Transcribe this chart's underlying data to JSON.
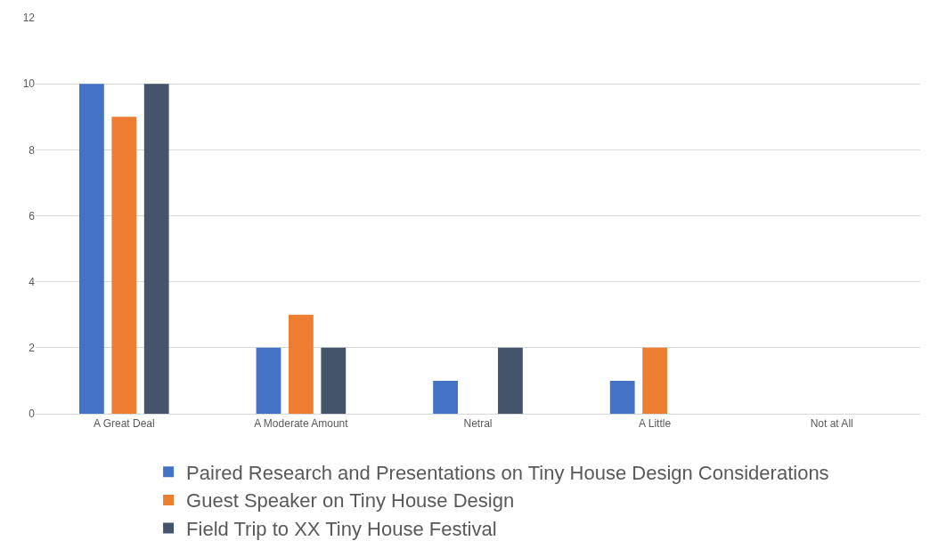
{
  "chart_data": {
    "type": "bar",
    "categories": [
      "A Great Deal",
      "A Moderate Amount",
      "Netral",
      "A Little",
      "Not at All"
    ],
    "series": [
      {
        "name": "Paired Research and Presentations on Tiny House Design Considerations",
        "color": "#4472c4",
        "values": [
          10,
          2,
          1,
          1,
          0
        ]
      },
      {
        "name": "Guest Speaker on Tiny House Design",
        "color": "#ed7d31",
        "values": [
          9,
          3,
          0,
          2,
          0
        ]
      },
      {
        "name": "Field Trip to XX Tiny House Festival",
        "color": "#44546a",
        "values": [
          10,
          2,
          2,
          0,
          0
        ]
      }
    ],
    "ylim": [
      0,
      12
    ],
    "yticks": [
      0,
      2,
      4,
      6,
      8,
      10,
      12
    ],
    "grid": "y",
    "legend": "bottom"
  }
}
